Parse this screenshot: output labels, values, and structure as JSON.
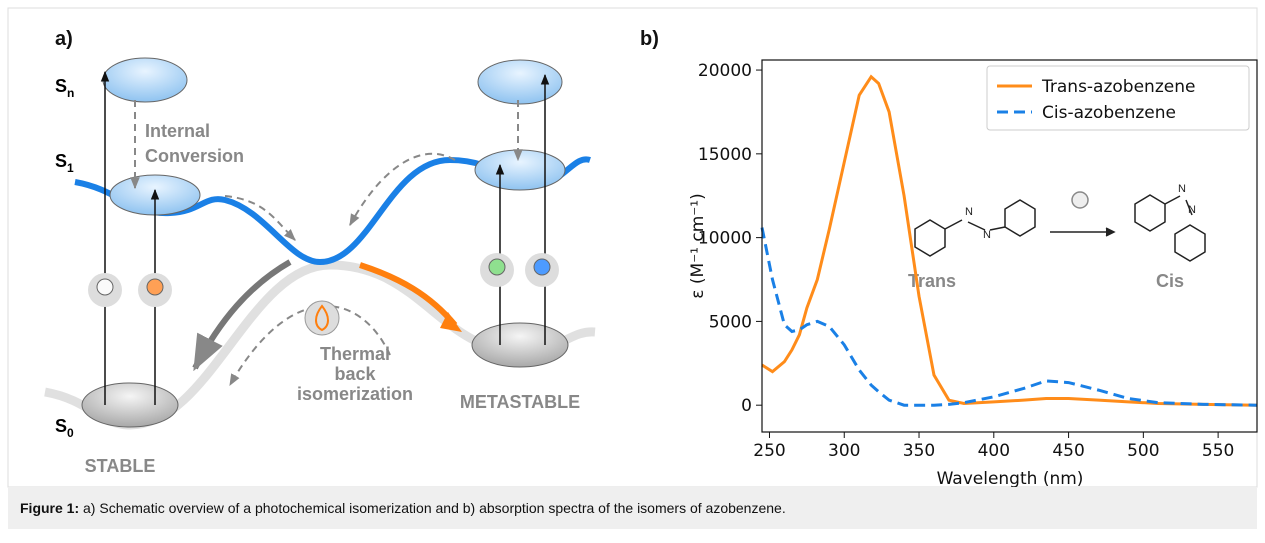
{
  "panel_a": {
    "label": "a)",
    "levels": [
      {
        "symbol": "S",
        "index": "n"
      },
      {
        "symbol": "S",
        "index": "1"
      },
      {
        "symbol": "S",
        "index": "0"
      }
    ],
    "internal_conversion": [
      "Internal",
      "Conversion"
    ],
    "thermal": [
      "Thermal",
      "back",
      "isomerization"
    ],
    "stable": "STABLE",
    "metastable": "METASTABLE"
  },
  "chart_data": {
    "type": "line",
    "panel_label": "b)",
    "xlabel": "Wavelength (nm)",
    "ylabel": "ε (M⁻¹ cm⁻¹)",
    "x": [
      245,
      252,
      260,
      265,
      270,
      275,
      282,
      290,
      300,
      310,
      318,
      323,
      330,
      340,
      350,
      360,
      370,
      380,
      400,
      420,
      435,
      450,
      470,
      490,
      510,
      540,
      576
    ],
    "series": [
      {
        "name": "Trans-azobenzene",
        "color": "#ff8c1a",
        "dash": "solid",
        "values": [
          2400,
          2000,
          2600,
          3300,
          4200,
          5800,
          7500,
          10500,
          14500,
          18500,
          19600,
          19200,
          17500,
          12500,
          6500,
          1800,
          300,
          100,
          200,
          300,
          400,
          400,
          300,
          200,
          100,
          50,
          0
        ]
      },
      {
        "name": "Cis-azobenzene",
        "color": "#1a80e6",
        "dash": "dashed",
        "values": [
          10600,
          7500,
          4800,
          4400,
          4500,
          4800,
          5000,
          4700,
          3600,
          2100,
          1200,
          800,
          300,
          0,
          0,
          0,
          50,
          150,
          500,
          1000,
          1450,
          1350,
          900,
          400,
          150,
          50,
          0
        ]
      }
    ],
    "xlim": [
      245,
      576
    ],
    "ylim": [
      -1600,
      20600
    ],
    "xticks": [
      250,
      300,
      350,
      400,
      450,
      500,
      550
    ],
    "yticks": [
      0,
      5000,
      10000,
      15000,
      20000
    ],
    "legend": "upper right",
    "inset": {
      "trans": "Trans",
      "cis": "Cis"
    }
  },
  "caption": {
    "label": "Figure 1:",
    "text": " a) Schematic overview of a photochemical isomerization and b) absorption spectra of the isomers of azobenzene."
  }
}
